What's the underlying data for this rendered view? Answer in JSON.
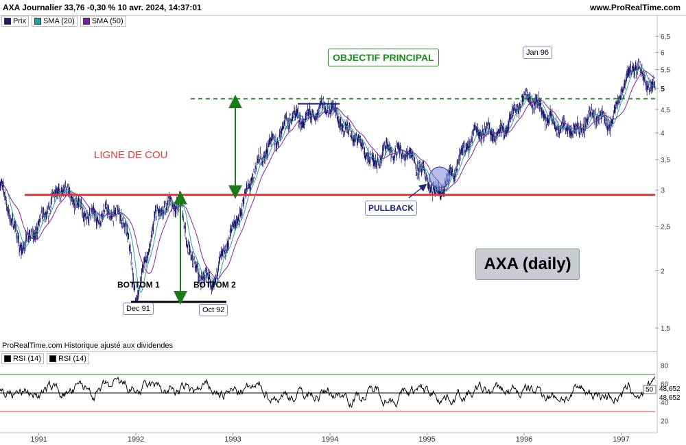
{
  "header": {
    "title": "AXA Journalier 33,76 -0,30 % 10 avr. 2024, 14:37:01",
    "site": "www.ProRealTime.com"
  },
  "legend": [
    {
      "label": "Prix",
      "color": "#1a1a6e"
    },
    {
      "label": "SMA (20)",
      "color": "#21a3a3"
    },
    {
      "label": "SMA (50)",
      "color": "#7b1fa2"
    }
  ],
  "annotations": {
    "neckline": "LIGNE DE COU",
    "objective": "OBJECTIF PRINCIPAL",
    "pullback": "PULLBACK",
    "bottom1": "BOTTOM 1",
    "bottom2": "BOTTOM 2",
    "dec91": "Dec 91",
    "oct92": "Oct 92",
    "jan96": "Jan 96",
    "big_title": "AXA (daily)"
  },
  "footer_note": "ProRealTime.com  Historique ajusté aux dividendes",
  "rsi_legend": [
    {
      "label": "RSI (14)",
      "color": "#000000"
    },
    {
      "label": "RSI (14)",
      "color": "#000000"
    }
  ],
  "rsi_values": {
    "level": "50",
    "value1": "48,652",
    "value2": "48,652"
  },
  "colors": {
    "neckline": "#e53935",
    "objective": "#1b8a1b",
    "arrows": "#1b7a1b",
    "pullback_circle": "#7b86d6"
  },
  "chart_data": [
    {
      "type": "line",
      "scale": "log",
      "series": [
        {
          "name": "Prix",
          "x": [
            1990.6,
            1990.8,
            1991.0,
            1991.2,
            1991.45,
            1991.7,
            1991.9,
            1992.0,
            1992.2,
            1992.45,
            1992.6,
            1992.8,
            1992.95,
            1993.2,
            1993.45,
            1993.6,
            1993.8,
            1994.0,
            1994.25,
            1994.45,
            1994.6,
            1994.8,
            1995.0,
            1995.1,
            1995.3,
            1995.5,
            1995.75,
            1996.0,
            1996.15,
            1996.35,
            1996.55,
            1996.75,
            1996.9,
            1997.0,
            1997.15,
            1997.3
          ],
          "values": [
            3.1,
            2.2,
            2.6,
            2.95,
            2.75,
            2.65,
            2.5,
            1.78,
            2.6,
            2.8,
            2.1,
            1.82,
            2.3,
            3.3,
            3.8,
            4.5,
            4.3,
            4.5,
            4.05,
            3.3,
            3.75,
            3.7,
            3.05,
            2.9,
            3.5,
            3.9,
            4.1,
            4.7,
            4.55,
            4.25,
            3.9,
            4.5,
            4.3,
            4.9,
            5.5,
            5.15
          ]
        }
      ],
      "yticks": [
        "6,5",
        "6",
        "5,5",
        "5",
        "4,5",
        "4",
        "3,5",
        "3",
        "2,5",
        "2",
        "1,5"
      ],
      "ylim": [
        1.42,
        6.8
      ],
      "xticks": [
        "1991",
        "1992",
        "1993",
        "1994",
        "1995",
        "1996",
        "1997"
      ],
      "xlim": [
        1990.6,
        1997.35
      ],
      "neckline_level": 2.93,
      "objective_level": 4.75
    },
    {
      "type": "line",
      "series": [
        {
          "name": "RSI (14)"
        }
      ],
      "yticks": [
        "80",
        "60",
        "40",
        "20"
      ],
      "ylim": [
        10,
        90
      ],
      "levels": [
        70,
        50,
        30
      ]
    }
  ]
}
